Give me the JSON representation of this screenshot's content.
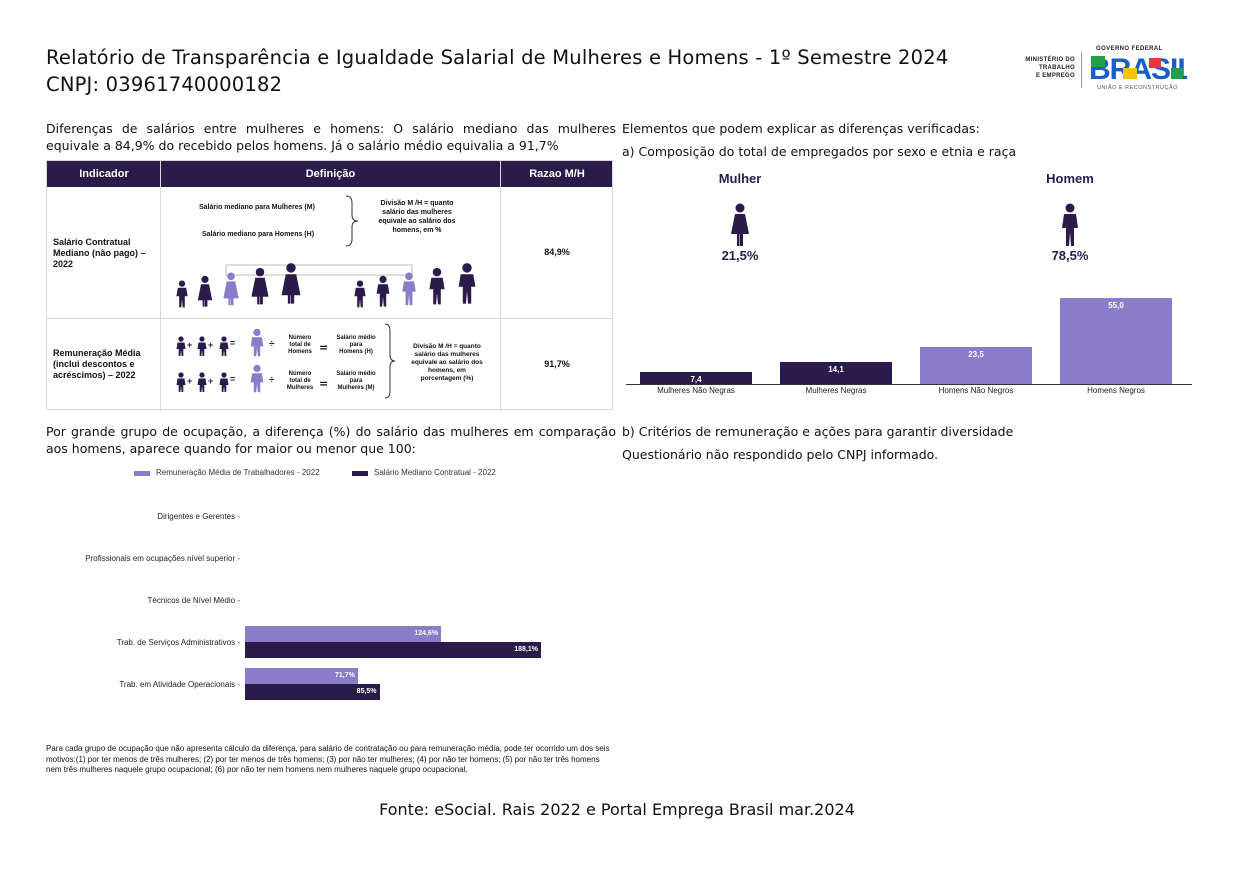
{
  "header": {
    "title_line1": "Relatório de Transparência e Igualdade Salarial de Mulheres e Homens - 1º Semestre 2024",
    "title_line2": "CNPJ: 03961740000182"
  },
  "logo": {
    "ministry_lines": [
      "MINISTÉRIO DO",
      "TRABALHO",
      "E EMPREGO"
    ],
    "gov_label": "GOVERNO FEDERAL",
    "brasil": "BRASIL",
    "slogan": "UNIÃO E RECONSTRUÇÃO"
  },
  "intro": {
    "line1": "Diferenças de salários entre mulheres e homens: O salário mediano das mulheres",
    "line2": "equivale a 84,9% do recebido pelos homens. Já o salário médio equivalia a 91,7%"
  },
  "table": {
    "headers": [
      "Indicador",
      "Definição",
      "Razao M/H"
    ],
    "row1": {
      "indicator": [
        "Salário Contratual",
        "Mediano (não pago) –",
        "2022"
      ],
      "def_women": "Salário mediano para Mulheres (M)",
      "def_men": "Salário mediano para Homens (H)",
      "division": [
        "Divisão M /H = quanto",
        "salário das mulheres",
        "equivale ao salário dos",
        "homens, em %"
      ],
      "ratio": "84,9%"
    },
    "row2": {
      "indicator": [
        "Remuneração Média",
        "(inclui descontos e",
        "acréscimos) – 2022"
      ],
      "count_h": [
        "Número",
        "total de",
        "Homens"
      ],
      "count_m": [
        "Número",
        "total de",
        "Mulheres"
      ],
      "avg_h": [
        "Salário médio",
        "para",
        "Homens (H)"
      ],
      "avg_m": [
        "Salário médio",
        "para",
        "Mulheres (M)"
      ],
      "division": [
        "Divisão M /H = quanto",
        "salário das mulheres",
        "equivale ao salário dos",
        "homens, em",
        "porcentagem (%)"
      ],
      "ratio": "91,7%"
    }
  },
  "right": {
    "heading": "Elementos que podem explicar as diferenças verificadas:",
    "sub_a": "a) Composição do total de empregados por sexo e etnia e raça",
    "woman_label": "Mulher",
    "woman_pct": "21,5%",
    "man_label": "Homem",
    "man_pct": "78,5%",
    "sub_b": "b) Critérios de remuneração e ações para garantir diversidade",
    "not_answered": "Questionário não respondido pelo CNPJ informado."
  },
  "occupation": {
    "line1": "Por grande grupo de ocupação, a diferença (%) do salário das mulheres em comparação",
    "line2": "aos homens, aparece quando for maior ou menor que 100:"
  },
  "chart_data": [
    {
      "type": "bar",
      "categories": [
        "Mulheres Não Negras",
        "Mulheres Negras",
        "Homens Não Negros",
        "Homens Negros"
      ],
      "values": [
        7.4,
        14.1,
        23.5,
        55.0
      ],
      "value_labels": [
        "7,4",
        "14,1",
        "23,5",
        "55,0"
      ],
      "colors": [
        "#2b1b4a",
        "#2b1b4a",
        "#8a7cc8",
        "#8a7cc8"
      ],
      "ylim": [
        0,
        55
      ]
    },
    {
      "type": "bar",
      "orientation": "horizontal",
      "categories": [
        "Dirigentes e Gerentes",
        "Profissionais em ocupações nível superior",
        "Técnicos de Nível Médio",
        "Trab. de Serviços Administrativos",
        "Trab. em Atividade Operacionais"
      ],
      "series": [
        {
          "name": "Remuneração Média de Trabalhadores - 2022",
          "color": "#8a7cc8",
          "values": [
            null,
            null,
            null,
            124.6,
            71.7
          ],
          "labels": [
            "",
            "",
            "",
            "124,6%",
            "71,7%"
          ]
        },
        {
          "name": "Salário Mediano Contratual - 2022",
          "color": "#2b1b4a",
          "values": [
            null,
            null,
            null,
            188.1,
            85.5
          ],
          "labels": [
            "",
            "",
            "",
            "188,1%",
            "85,5%"
          ]
        }
      ],
      "xlim": [
        0,
        188.1
      ],
      "legend": "top"
    }
  ],
  "footnote": "Para cada grupo de ocupação que não apresenta cálculo da diferença, para salário de contratação ou para remuneração média, pode ter ocorrido um dos seis motivos:(1) por ter menos de três mulheres; (2) por ter menos de três homens; (3) por não ter mulheres; (4) por não ter homens; (5) por não ter três homens nem três mulheres naquele grupo ocupacional; (6) por não ter nem homens nem mulheres naquele grupo ocupacional.",
  "source": "Fonte: eSocial. Rais 2022 e Portal Emprega Brasil mar.2024",
  "colors": {
    "dark": "#2b1b4a",
    "light": "#8a7cc8"
  }
}
